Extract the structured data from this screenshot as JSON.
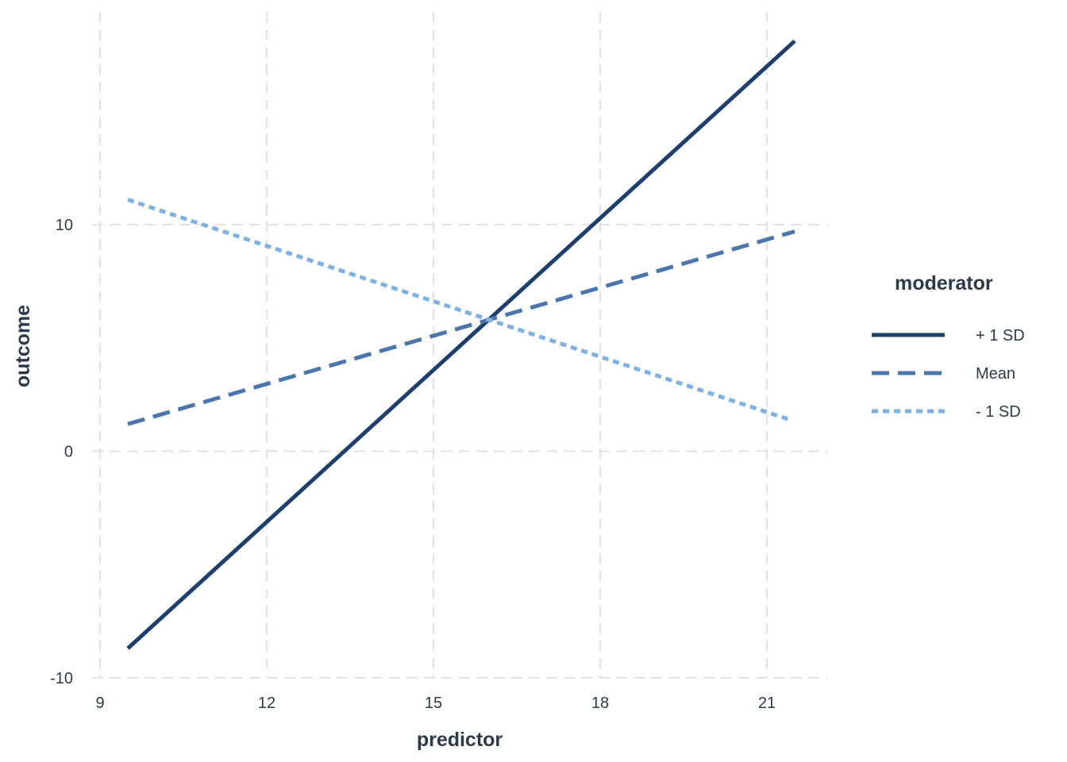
{
  "chart_data": {
    "type": "line",
    "title": "",
    "xlabel": "predictor",
    "ylabel": "outcome",
    "xlim": [
      9,
      22
    ],
    "ylim": [
      -10,
      20
    ],
    "x_ticks": [
      9,
      12,
      15,
      18,
      21
    ],
    "x_tick_labels": [
      "9",
      "12",
      "15",
      "18",
      "21"
    ],
    "y_ticks": [
      -10,
      0,
      10
    ],
    "y_tick_labels": [
      "-10",
      "0",
      "10"
    ],
    "grid": true,
    "legend": {
      "title": "moderator",
      "placement": "right"
    },
    "series": [
      {
        "name": "+ 1 SD",
        "color": "#1c3f6e",
        "line_style": "solid",
        "x": [
          9.5,
          21.5
        ],
        "y": [
          -8.7,
          18.1
        ]
      },
      {
        "name": "Mean",
        "color": "#4a76ad",
        "line_style": "dashed",
        "x": [
          9.5,
          21.5
        ],
        "y": [
          1.2,
          9.7
        ]
      },
      {
        "name": "- 1 SD",
        "color": "#7cb1e4",
        "line_style": "dotted",
        "x": [
          9.5,
          21.4
        ],
        "y": [
          11.1,
          1.4
        ]
      }
    ]
  }
}
